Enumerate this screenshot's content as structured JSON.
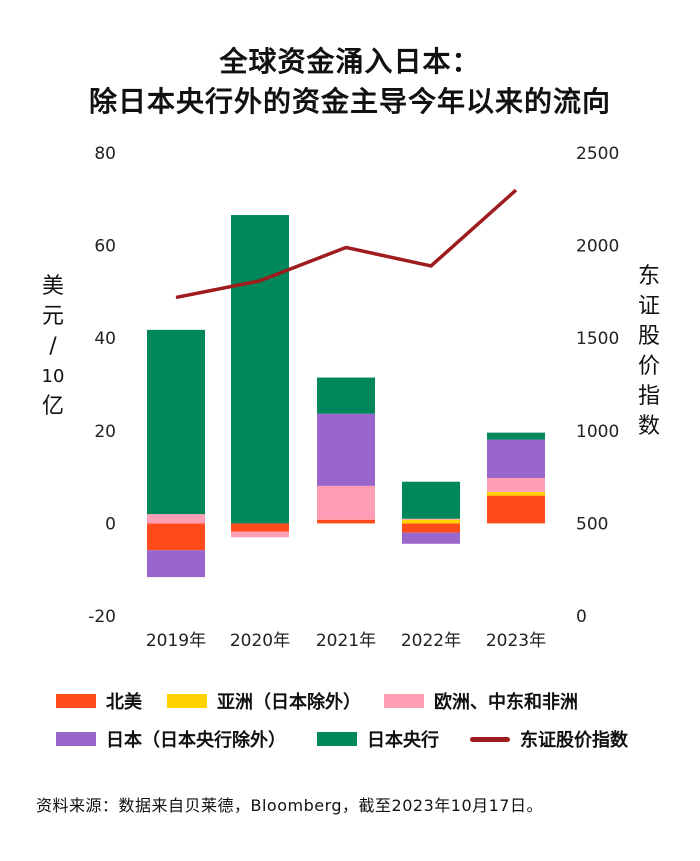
{
  "chart_data": {
    "type": "bar",
    "title_line1": "全球资金涌入日本：",
    "title_line2": "除日本央行外的资金主导今年以来的流向",
    "categories": [
      "2019年",
      "2020年",
      "2021年",
      "2022年",
      "2023年"
    ],
    "ylabel_left": [
      "美",
      "元",
      "/",
      "10",
      "亿"
    ],
    "ylabel_right": [
      "东",
      "证",
      "股",
      "价",
      "指",
      "数"
    ],
    "ylim_left": [
      -20,
      80
    ],
    "ylim_right": [
      0,
      2500
    ],
    "left_ticks": [
      "80",
      "60",
      "40",
      "20",
      "0",
      "-20"
    ],
    "right_ticks": [
      "2500",
      "2000",
      "1500",
      "1000",
      "500",
      "0"
    ],
    "series": [
      {
        "name": "北美",
        "color": "#ff4a1a",
        "values": [
          -5.8,
          -1.8,
          0.8,
          -2.0,
          6.0
        ]
      },
      {
        "name": "亚洲（日本除外）",
        "color": "#ffd200",
        "values": [
          0,
          0,
          0,
          0.8,
          0.8
        ]
      },
      {
        "name": "欧洲、中东和非洲",
        "color": "#ff9eb5",
        "values": [
          2.0,
          -1.2,
          7.3,
          0.2,
          3.0
        ]
      },
      {
        "name": "日本（日本央行除外）",
        "color": "#9966cc",
        "values": [
          -5.8,
          0,
          15.6,
          -2.4,
          8.3
        ]
      },
      {
        "name": "日本央行",
        "color": "#00875a",
        "values": [
          39.8,
          66.6,
          7.8,
          8.0,
          1.5
        ]
      }
    ],
    "line_series": {
      "name": "东证股价指数",
      "color": "#9e1b1e",
      "values": [
        1720,
        1810,
        1990,
        1890,
        2300
      ]
    }
  },
  "legend": {
    "na": "北美",
    "asia": "亚洲（日本除外）",
    "emea": "欧洲、中东和非洲",
    "japan": "日本（日本央行除外）",
    "boj": "日本央行",
    "topix": "东证股价指数"
  },
  "source": "资料来源：数据来自贝莱德，Bloomberg，截至2023年10月17日。"
}
